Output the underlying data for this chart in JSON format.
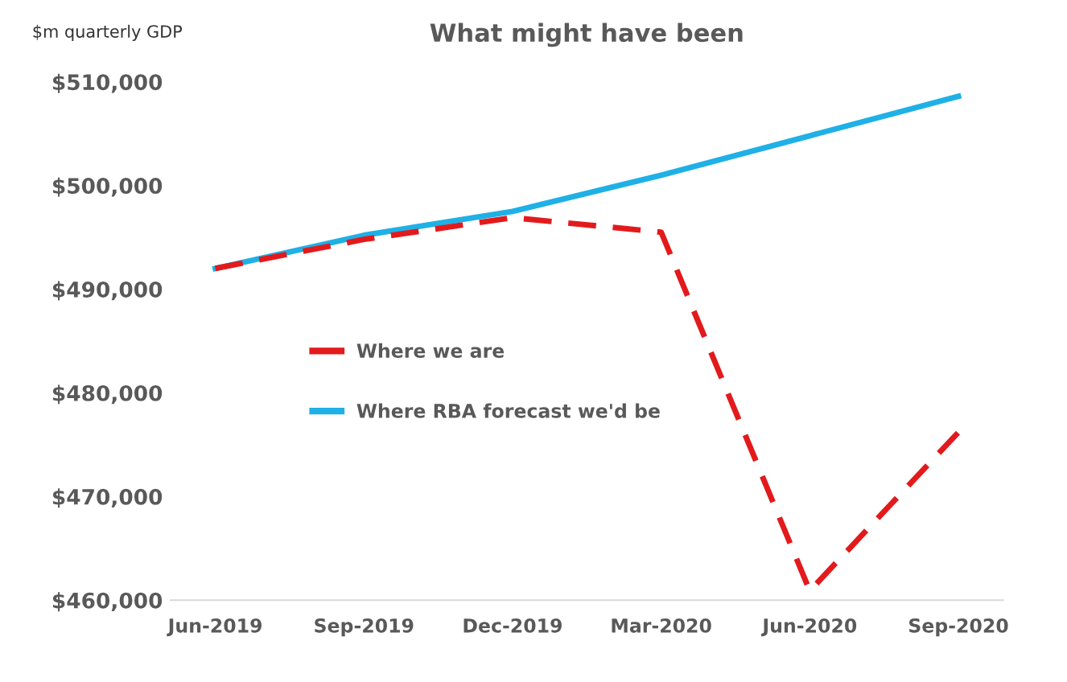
{
  "chart_data": {
    "type": "line",
    "title": "What might have been",
    "ylabel": "$m quarterly GDP",
    "categories": [
      "Jun-2019",
      "Sep-2019",
      "Dec-2019",
      "Mar-2020",
      "Jun-2020",
      "Sep-2020"
    ],
    "series": [
      {
        "name": "Where we are",
        "color": "#e31a1c",
        "line_style": "dashed",
        "values": [
          492000,
          494800,
          496900,
          495500,
          460900,
          476200
        ]
      },
      {
        "name": "Where RBA forecast we'd be",
        "color": "#1fb0e6",
        "line_style": "solid",
        "values": [
          492000,
          495200,
          497500,
          501000,
          504800,
          508600
        ]
      }
    ],
    "ylim": [
      460000,
      510000
    ],
    "yticks": [
      {
        "value": 460000,
        "label": "$460,000"
      },
      {
        "value": 470000,
        "label": "$470,000"
      },
      {
        "value": 480000,
        "label": "$480,000"
      },
      {
        "value": 490000,
        "label": "$490,000"
      },
      {
        "value": 500000,
        "label": "$500,000"
      },
      {
        "value": 510000,
        "label": "$510,000"
      }
    ],
    "grid": false,
    "legend": "left",
    "marker": "none"
  }
}
